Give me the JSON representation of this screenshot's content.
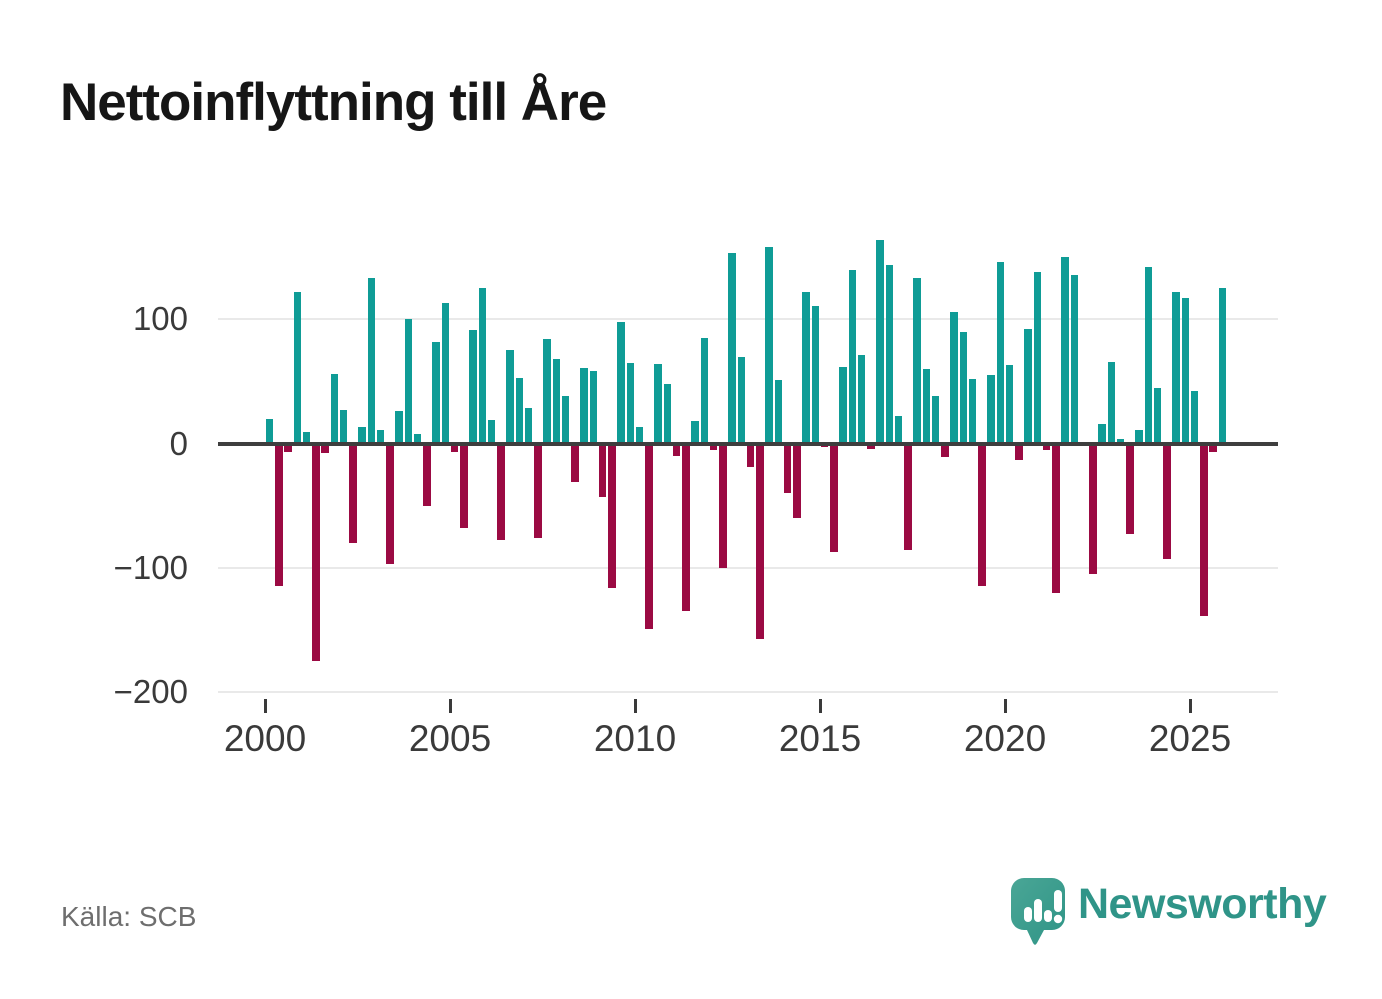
{
  "title": "Nettoinflyttning till Åre",
  "source": "Källa: SCB",
  "branding": {
    "logo_text": "Newsworthy"
  },
  "colors": {
    "positive_bar": "#0f9c96",
    "negative_bar": "#9b0a43",
    "zero_line": "#3e3e3e",
    "gridline": "#e9e9e9",
    "axis_text": "#3a3a3a",
    "title_text": "#161616",
    "source_text": "#6e6e6e",
    "brand_teal": "#2f9488",
    "logo_fill_light": "#4aa696",
    "logo_fill_dark": "#2f9486"
  },
  "chart_data": {
    "type": "bar",
    "title": "Nettoinflyttning till Åre",
    "xlabel": "",
    "ylabel": "",
    "x_tick_labels": [
      "2000",
      "2005",
      "2010",
      "2015",
      "2020",
      "2025"
    ],
    "y_ticks": [
      100,
      0,
      -100,
      -200
    ],
    "y_tick_labels": [
      "100",
      "0",
      "−100",
      "−200"
    ],
    "ylim": [
      -200,
      170
    ],
    "grid": "horizontal",
    "legend": "none",
    "frequency": "quarterly",
    "points": [
      [
        "2000Q1",
        20
      ],
      [
        "2000Q2",
        -115
      ],
      [
        "2000Q3",
        -7
      ],
      [
        "2000Q4",
        122
      ],
      [
        "2001Q1",
        9
      ],
      [
        "2001Q2",
        -175
      ],
      [
        "2001Q3",
        -8
      ],
      [
        "2001Q4",
        56
      ],
      [
        "2002Q1",
        27
      ],
      [
        "2002Q2",
        -80
      ],
      [
        "2002Q3",
        13
      ],
      [
        "2002Q4",
        133
      ],
      [
        "2003Q1",
        11
      ],
      [
        "2003Q2",
        -97
      ],
      [
        "2003Q3",
        26
      ],
      [
        "2003Q4",
        100
      ],
      [
        "2004Q1",
        8
      ],
      [
        "2004Q2",
        -50
      ],
      [
        "2004Q3",
        82
      ],
      [
        "2004Q4",
        113
      ],
      [
        "2005Q1",
        -7
      ],
      [
        "2005Q2",
        -68
      ],
      [
        "2005Q3",
        91
      ],
      [
        "2005Q4",
        125
      ],
      [
        "2006Q1",
        19
      ],
      [
        "2006Q2",
        -78
      ],
      [
        "2006Q3",
        75
      ],
      [
        "2006Q4",
        53
      ],
      [
        "2007Q1",
        29
      ],
      [
        "2007Q2",
        -76
      ],
      [
        "2007Q3",
        84
      ],
      [
        "2007Q4",
        68
      ],
      [
        "2008Q1",
        38
      ],
      [
        "2008Q2",
        -31
      ],
      [
        "2008Q3",
        61
      ],
      [
        "2008Q4",
        58
      ],
      [
        "2009Q1",
        -43
      ],
      [
        "2009Q2",
        -116
      ],
      [
        "2009Q3",
        98
      ],
      [
        "2009Q4",
        65
      ],
      [
        "2010Q1",
        13
      ],
      [
        "2010Q2",
        -149
      ],
      [
        "2010Q3",
        64
      ],
      [
        "2010Q4",
        48
      ],
      [
        "2011Q1",
        -10
      ],
      [
        "2011Q2",
        -135
      ],
      [
        "2011Q3",
        18
      ],
      [
        "2011Q4",
        85
      ],
      [
        "2012Q1",
        -5
      ],
      [
        "2012Q2",
        -100
      ],
      [
        "2012Q3",
        153
      ],
      [
        "2012Q4",
        70
      ],
      [
        "2013Q1",
        -19
      ],
      [
        "2013Q2",
        -157
      ],
      [
        "2013Q3",
        158
      ],
      [
        "2013Q4",
        51
      ],
      [
        "2014Q1",
        -40
      ],
      [
        "2014Q2",
        -60
      ],
      [
        "2014Q3",
        122
      ],
      [
        "2014Q4",
        111
      ],
      [
        "2015Q1",
        -3
      ],
      [
        "2015Q2",
        -87
      ],
      [
        "2015Q3",
        62
      ],
      [
        "2015Q4",
        140
      ],
      [
        "2016Q1",
        71
      ],
      [
        "2016Q2",
        -4
      ],
      [
        "2016Q3",
        164
      ],
      [
        "2016Q4",
        144
      ],
      [
        "2017Q1",
        22
      ],
      [
        "2017Q2",
        -86
      ],
      [
        "2017Q3",
        133
      ],
      [
        "2017Q4",
        60
      ],
      [
        "2018Q1",
        38
      ],
      [
        "2018Q2",
        -11
      ],
      [
        "2018Q3",
        106
      ],
      [
        "2018Q4",
        90
      ],
      [
        "2019Q1",
        52
      ],
      [
        "2019Q2",
        -115
      ],
      [
        "2019Q3",
        55
      ],
      [
        "2019Q4",
        146
      ],
      [
        "2020Q1",
        63
      ],
      [
        "2020Q2",
        -13
      ],
      [
        "2020Q3",
        92
      ],
      [
        "2020Q4",
        138
      ],
      [
        "2021Q1",
        -5
      ],
      [
        "2021Q2",
        -120
      ],
      [
        "2021Q3",
        150
      ],
      [
        "2021Q4",
        136
      ],
      [
        "2022Q1",
        0
      ],
      [
        "2022Q2",
        -105
      ],
      [
        "2022Q3",
        16
      ],
      [
        "2022Q4",
        66
      ],
      [
        "2023Q1",
        4
      ],
      [
        "2023Q2",
        -73
      ],
      [
        "2023Q3",
        11
      ],
      [
        "2023Q4",
        142
      ],
      [
        "2024Q1",
        45
      ],
      [
        "2024Q2",
        -93
      ],
      [
        "2024Q3",
        122
      ],
      [
        "2024Q4",
        117
      ],
      [
        "2025Q1",
        42
      ],
      [
        "2025Q2",
        -139
      ],
      [
        "2025Q3",
        -7
      ],
      [
        "2025Q4",
        125
      ]
    ]
  }
}
